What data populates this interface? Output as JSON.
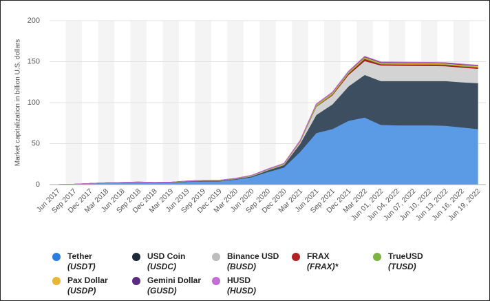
{
  "chart_data": {
    "type": "stacked-area",
    "ylabel": "Market capitalization in billion U.S. dollars",
    "ylim": [
      0,
      200
    ],
    "yticks": [
      0,
      50,
      100,
      150,
      200
    ],
    "grid": true,
    "categories": [
      "Jun 2017",
      "Sep 2017",
      "Dec 2017",
      "Mar 2018",
      "Jun 2018",
      "Sep 2018",
      "Dec 2018",
      "Mar 2019",
      "Jun 2019",
      "Sep 2019",
      "Dec 2019",
      "Mar 2020",
      "Jun 2020",
      "Sep 2020",
      "Dec 2020",
      "Mar 2021",
      "Jun 2021",
      "Sep 2021",
      "Dec 2021",
      "Mar 2022",
      "Jun 01, 2022",
      "Jun 04, 2022",
      "Jun 07, 2022",
      "Jun 10, 2022",
      "Jun 13, 2022",
      "Jun 16, 2022",
      "Jun 19, 2022"
    ],
    "series": [
      {
        "name": "Tether",
        "ticker": "(USDT)",
        "color": "#5b9be6",
        "legend_color": "#2b7de0",
        "values": [
          0.1,
          0.5,
          1.4,
          2.3,
          2.6,
          2.8,
          2.0,
          2.2,
          3.5,
          4.1,
          4.1,
          6.2,
          9.2,
          15.5,
          21,
          40,
          63,
          68,
          78,
          82,
          73,
          72.5,
          72.5,
          72.5,
          72,
          70,
          68
        ]
      },
      {
        "name": "USD Coin",
        "ticker": "(USDC)",
        "color": "#3c4e5f",
        "legend_color": "#1c2a38",
        "values": [
          0,
          0,
          0,
          0,
          0,
          0.1,
          0.3,
          0.3,
          0.5,
          0.5,
          0.5,
          0.7,
          1,
          2,
          3,
          10,
          22,
          30,
          42,
          52,
          53.5,
          54,
          54,
          54,
          54.5,
          55,
          56
        ]
      },
      {
        "name": "Binance USD",
        "ticker": "(BUSD)",
        "color": "#d3d3d3",
        "legend_color": "#bdbdbd",
        "values": [
          0,
          0,
          0,
          0,
          0,
          0,
          0,
          0,
          0,
          0.1,
          0.2,
          0.3,
          0.5,
          0.6,
          0.8,
          2,
          10,
          11,
          14,
          17,
          19,
          18.8,
          18.6,
          18.5,
          18.2,
          18,
          17.5
        ]
      },
      {
        "name": "FRAX",
        "ticker": "(FRAX)*",
        "color": "#a51c1c",
        "legend_color": "#b22222",
        "values": [
          0,
          0,
          0,
          0,
          0,
          0,
          0,
          0,
          0,
          0,
          0,
          0,
          0,
          0,
          0.1,
          0.2,
          0.3,
          0.8,
          1.5,
          2.5,
          1.4,
          1.4,
          1.4,
          1.4,
          1.4,
          1.4,
          1.4
        ]
      },
      {
        "name": "TrueUSD",
        "ticker": "(TUSD)",
        "color": "#7cb342",
        "legend_color": "#7cb342",
        "values": [
          0,
          0,
          0,
          0.02,
          0.1,
          0.15,
          0.2,
          0.2,
          0.2,
          0.2,
          0.2,
          0.2,
          0.3,
          0.4,
          0.3,
          0.5,
          1.5,
          1.4,
          1.2,
          1.3,
          1.0,
          1.0,
          1.0,
          1.0,
          1.0,
          1.0,
          1.0
        ]
      },
      {
        "name": "Pax Dollar",
        "ticker": "(USDP)",
        "color": "#e8b535",
        "legend_color": "#e8b535",
        "values": [
          0,
          0,
          0,
          0,
          0,
          0.1,
          0.1,
          0.2,
          0.2,
          0.2,
          0.2,
          0.2,
          0.2,
          0.3,
          0.4,
          0.6,
          0.9,
          0.9,
          0.9,
          0.9,
          0.95,
          0.95,
          0.95,
          0.95,
          0.95,
          0.95,
          0.95
        ]
      },
      {
        "name": "Gemini Dollar",
        "ticker": "(GUSD)",
        "color": "#5b2c83",
        "legend_color": "#5b2c83",
        "values": [
          0,
          0,
          0,
          0,
          0,
          0.05,
          0.1,
          0.1,
          0.1,
          0.1,
          0.1,
          0.1,
          0.1,
          0.1,
          0.1,
          0.2,
          0.2,
          0.3,
          0.4,
          0.6,
          0.6,
          0.6,
          0.6,
          0.6,
          0.6,
          0.6,
          0.6
        ]
      },
      {
        "name": "HUSD",
        "ticker": "(HUSD)",
        "color": "#c36ed6",
        "legend_color": "#c36ed6",
        "values": [
          0,
          0,
          0,
          0,
          0,
          0,
          0,
          0,
          0,
          0,
          0.1,
          0.1,
          0.2,
          0.3,
          0.4,
          0.5,
          0.6,
          0.6,
          0.5,
          0.4,
          0.3,
          0.3,
          0.3,
          0.3,
          0.3,
          0.3,
          0.3
        ]
      }
    ]
  }
}
